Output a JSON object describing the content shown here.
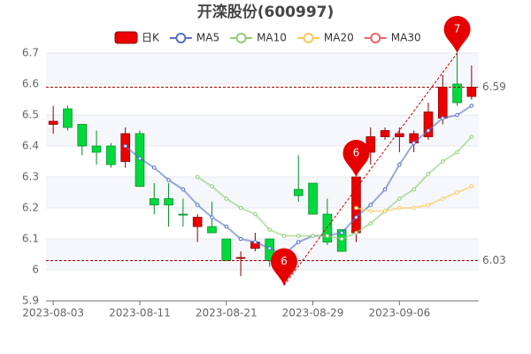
{
  "chart_data": {
    "type": "candlestick",
    "title": "开滦股份(600997)",
    "categories": [
      "2023-08-03",
      null,
      null,
      null,
      null,
      null,
      "2023-08-11",
      null,
      null,
      null,
      null,
      null,
      "2023-08-21",
      null,
      null,
      null,
      null,
      null,
      "2023-08-29",
      null,
      null,
      null,
      null,
      null,
      "2023-09-06",
      null,
      null,
      null,
      null,
      null
    ],
    "candles": {
      "name": "日K",
      "up_color": "#ec0000",
      "down_color": "#00da3c",
      "open": [
        6.47,
        6.52,
        6.47,
        6.4,
        6.4,
        6.35,
        6.44,
        6.23,
        6.23,
        6.18,
        6.14,
        6.14,
        6.1,
        6.04,
        6.07,
        6.1,
        6.0,
        6.26,
        6.28,
        6.18,
        6.13,
        6.12,
        6.38,
        6.43,
        6.43,
        6.41,
        6.43,
        6.49,
        6.6,
        6.56
      ],
      "close": [
        6.48,
        6.46,
        6.4,
        6.38,
        6.34,
        6.44,
        6.27,
        6.21,
        6.21,
        6.177,
        6.17,
        6.12,
        6.03,
        6.04,
        6.09,
        6.03,
        6.01,
        6.24,
        6.18,
        6.09,
        6.06,
        6.3,
        6.43,
        6.45,
        6.44,
        6.44,
        6.51,
        6.59,
        6.54,
        6.59
      ],
      "high": [
        6.53,
        6.53,
        6.47,
        6.45,
        6.41,
        6.46,
        6.45,
        6.28,
        6.28,
        6.23,
        6.18,
        6.22,
        6.1,
        6.06,
        6.12,
        6.1,
        6.02,
        6.37,
        6.28,
        6.23,
        6.13,
        6.3,
        6.46,
        6.46,
        6.46,
        6.45,
        6.54,
        6.63,
        6.7,
        6.66
      ],
      "low": [
        6.44,
        6.45,
        6.37,
        6.34,
        6.33,
        6.33,
        6.27,
        6.18,
        6.14,
        6.14,
        6.09,
        6.12,
        6.03,
        5.98,
        6.06,
        6.01,
        5.95,
        6.22,
        6.18,
        6.08,
        6.06,
        6.09,
        6.34,
        6.42,
        6.38,
        6.38,
        6.42,
        6.47,
        6.53,
        6.55
      ]
    },
    "series": [
      {
        "name": "MA5",
        "color": "#5470c6",
        "values": [
          null,
          null,
          null,
          null,
          null,
          6.4,
          6.36,
          6.33,
          6.29,
          6.26,
          6.21,
          6.17,
          6.14,
          6.1,
          6.09,
          6.07,
          6.05,
          6.09,
          6.11,
          6.11,
          6.12,
          6.17,
          6.21,
          6.26,
          6.34,
          6.41,
          6.45,
          6.49,
          6.5,
          6.53
        ]
      },
      {
        "name": "MA10",
        "color": "#91cc75",
        "values": [
          null,
          null,
          null,
          null,
          null,
          null,
          null,
          null,
          null,
          null,
          6.3,
          6.27,
          6.23,
          6.2,
          6.18,
          6.13,
          6.11,
          6.11,
          6.11,
          6.11,
          6.1,
          6.12,
          6.15,
          6.19,
          6.23,
          6.26,
          6.31,
          6.35,
          6.38,
          6.43
        ]
      },
      {
        "name": "MA20",
        "color": "#fac858",
        "values": [
          null,
          null,
          null,
          null,
          null,
          null,
          null,
          null,
          null,
          null,
          null,
          null,
          null,
          null,
          null,
          null,
          null,
          null,
          null,
          null,
          null,
          6.2,
          6.19,
          6.19,
          6.2,
          6.2,
          6.21,
          6.23,
          6.25,
          6.27
        ]
      },
      {
        "name": "MA30",
        "color": "#ee6666",
        "values": [
          null,
          null,
          null,
          null,
          null,
          null,
          null,
          null,
          null,
          null,
          null,
          null,
          null,
          null,
          null,
          null,
          null,
          null,
          null,
          null,
          null,
          null,
          null,
          null,
          null,
          null,
          null,
          null,
          null,
          null
        ]
      }
    ],
    "mark_lines": [
      6.59,
      6.03
    ],
    "mark_points": [
      {
        "index": 16,
        "value": 5.95,
        "label": "6"
      },
      {
        "index": 21,
        "value": 6.3,
        "label": "6"
      },
      {
        "index": 28,
        "value": 6.7,
        "label": "7"
      }
    ],
    "trend_line": true,
    "ylim": [
      5.9,
      6.7
    ],
    "yticks": [
      5.9,
      6,
      6.1,
      6.2,
      6.3,
      6.4,
      6.5,
      6.6,
      6.7
    ],
    "grid": true
  }
}
